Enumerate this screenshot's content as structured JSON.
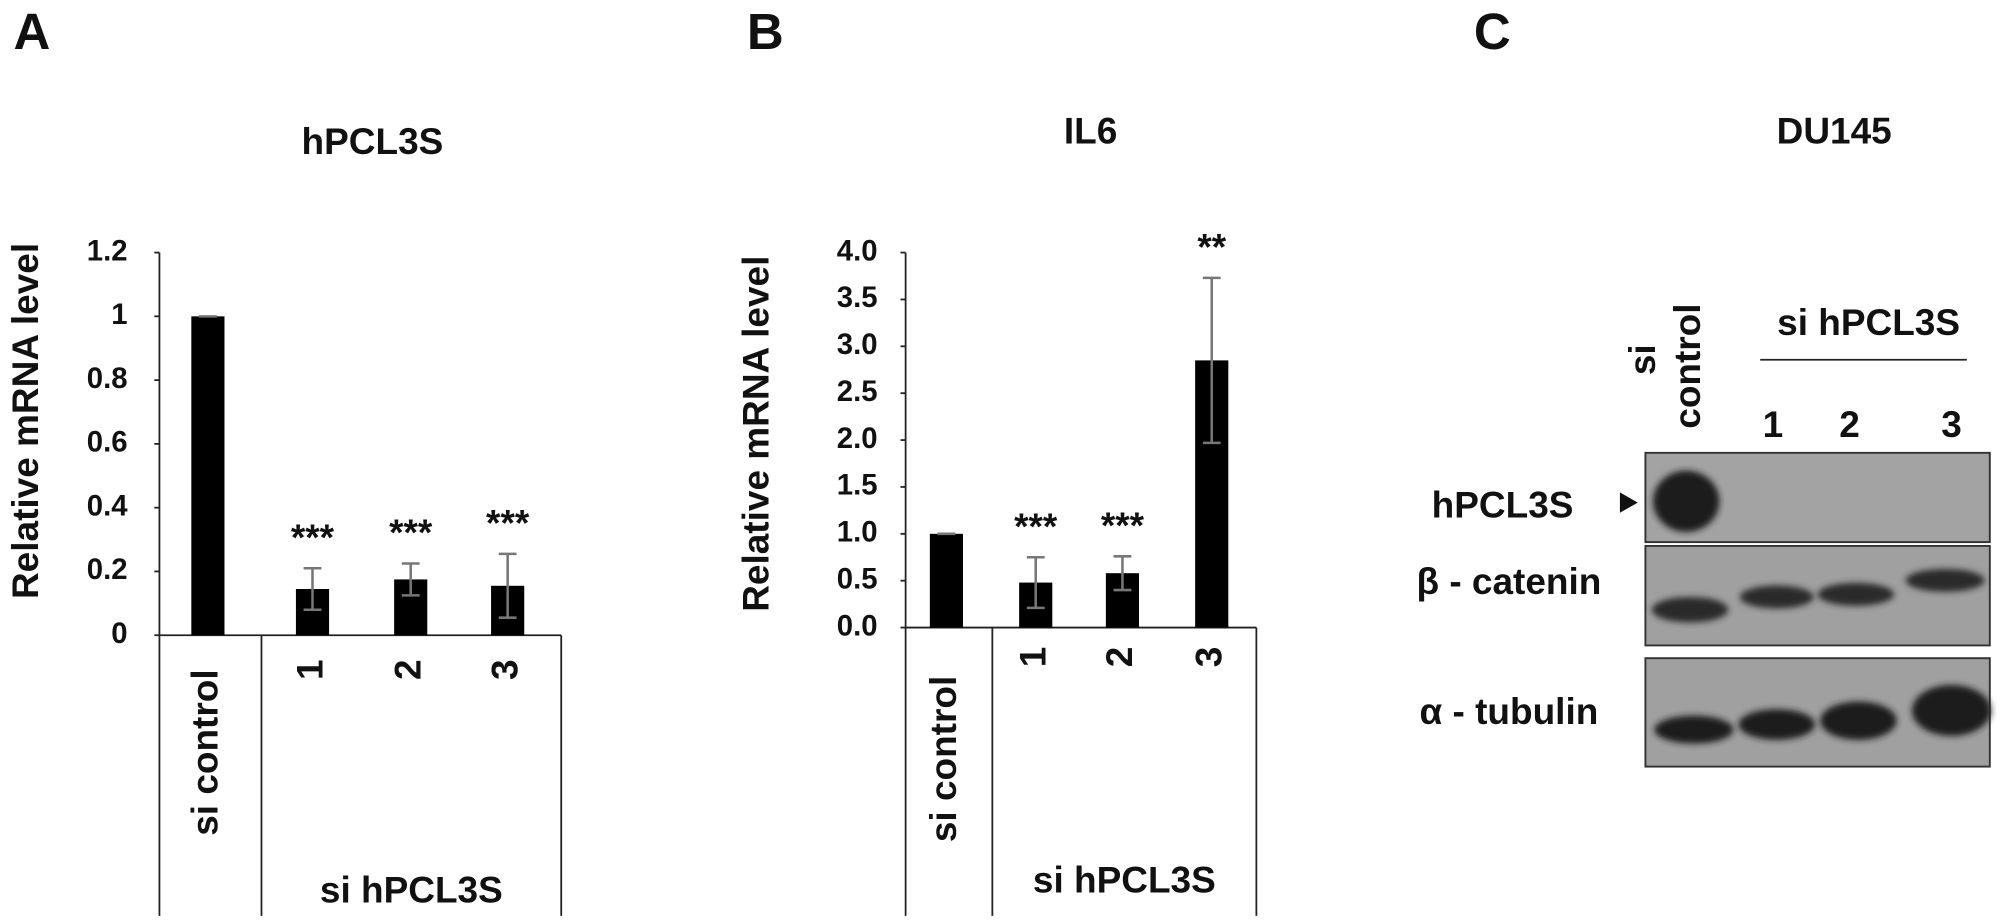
{
  "chart_data": [
    {
      "type": "bar",
      "panel": "A",
      "title": "hPCL3S",
      "ylabel": "Relative mRNA level",
      "categories": [
        "si control",
        "1",
        "2",
        "3"
      ],
      "group_label": "si hPCL3S",
      "values": [
        1,
        0.145,
        0.175,
        0.155
      ],
      "errors": [
        0,
        0.065,
        0.05,
        0.1
      ],
      "annotations": [
        null,
        "***",
        "***",
        "***"
      ],
      "color": "#000000",
      "error_color": "#777777",
      "ylim": [
        0,
        1.2
      ],
      "yticks": [
        0,
        0.2,
        0.4,
        0.6,
        0.8,
        1,
        1.2
      ]
    },
    {
      "type": "bar",
      "panel": "B",
      "title": "IL6",
      "ylabel": "Relative  mRNA level",
      "categories": [
        "si control",
        "1",
        "2",
        "3"
      ],
      "group_label": "si hPCL3S",
      "values": [
        1.0,
        0.48,
        0.58,
        2.85
      ],
      "errors": [
        0,
        0.27,
        0.18,
        0.88
      ],
      "annotations": [
        null,
        "***",
        "***",
        "**"
      ],
      "color": "#000000",
      "error_color": "#777777",
      "ylim": [
        0,
        4
      ],
      "yticks": [
        {
          "value": 0,
          "label": "0.0"
        },
        0.5,
        {
          "value": 1,
          "label": "1.0"
        },
        1.5,
        {
          "value": 2,
          "label": "2.0"
        },
        2.5,
        {
          "value": 3,
          "label": "3.0"
        },
        3.5,
        {
          "value": 4,
          "label": "4.0"
        }
      ]
    }
  ],
  "blot": {
    "panel": "C",
    "title": "DU145",
    "control_lines": [
      "si",
      "control"
    ],
    "group_label": "si hPCL3S",
    "lanes": [
      "1",
      "2",
      "3"
    ],
    "rows": [
      "hPCL3S",
      "β - catenin",
      "α - tubulin"
    ]
  }
}
